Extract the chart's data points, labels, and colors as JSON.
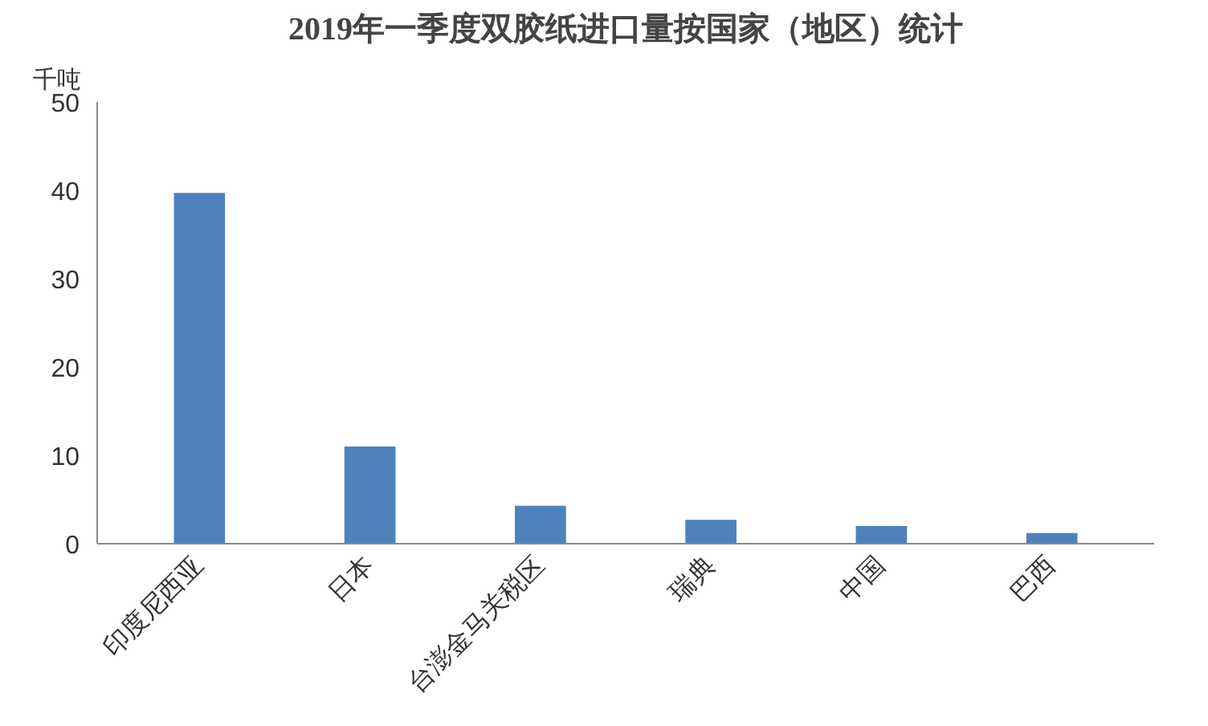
{
  "chart_data": {
    "type": "bar",
    "title": "2019年一季度双胶纸进口量按国家（地区）统计",
    "ylabel": "千吨",
    "categories": [
      "印度尼西亚",
      "日本",
      "台澎金马关税区",
      "瑞典",
      "中国",
      "巴西"
    ],
    "values": [
      39.7,
      11.0,
      4.3,
      2.7,
      2.0,
      1.2
    ],
    "color": "#4f81bd",
    "ylim": [
      0,
      50
    ],
    "yticks": [
      0,
      10,
      20,
      30,
      40,
      50
    ],
    "grid": false
  }
}
